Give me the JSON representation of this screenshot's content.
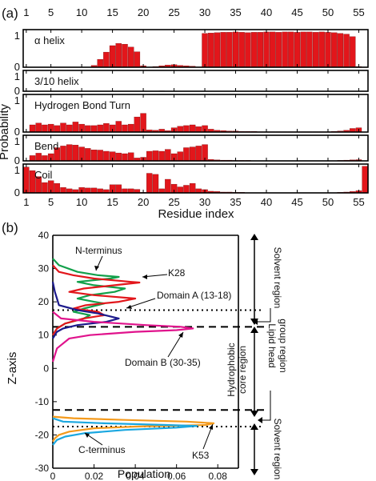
{
  "panel_a": {
    "label": "(a)",
    "ylabel": "Probability",
    "xlabel": "Residue index",
    "top_ticks": [
      "1",
      "5",
      "10",
      "15",
      "20",
      "25",
      "30",
      "35",
      "40",
      "45",
      "50",
      "55"
    ],
    "bottom_ticks": [
      "1",
      "5",
      "10",
      "15",
      "20",
      "25",
      "30",
      "35",
      "40",
      "45",
      "50",
      "55"
    ],
    "y_ticks": [
      "0",
      "1"
    ],
    "bar_color": "#e2161b",
    "subplot_titles": [
      "α helix",
      "3/10 helix",
      "Hydrogen Bond Turn",
      "Bend",
      "Coil"
    ]
  },
  "panel_b": {
    "label": "(b)",
    "ylabel": "Z-axis",
    "xlabel": "Population",
    "x_ticks": [
      "0",
      "0.02",
      "0.04",
      "0.06",
      "0.08"
    ],
    "y_ticks": [
      "40",
      "30",
      "20",
      "10",
      "0",
      "-10",
      "-20",
      "-30"
    ],
    "annotations": {
      "n_term": "N-terminus",
      "k28": "K28",
      "domain_a": "Domain A (13-18)",
      "domain_b": "Domain B (30-35)",
      "c_term": "C-terminus",
      "k53": "K53"
    },
    "regions": {
      "solvent_top": "Solvent region",
      "lipid_head": "Lipid head",
      "group_region": "group region",
      "hydrophobic": "Hydrophobic",
      "core_region": "core region",
      "solvent_bottom": "Solvent region"
    },
    "colors": {
      "green": "#12a04a",
      "red": "#e2161b",
      "navy": "#1c1a8c",
      "magenta": "#e0138c",
      "orange": "#f49a1c",
      "sky": "#1aa7e0"
    }
  },
  "chart_data": [
    {
      "type": "bar",
      "title": "α helix",
      "xlabel": "Residue index",
      "ylabel": "Probability",
      "x": [
        1,
        2,
        3,
        4,
        5,
        6,
        7,
        8,
        9,
        10,
        11,
        12,
        13,
        14,
        15,
        16,
        17,
        18,
        19,
        20,
        21,
        22,
        23,
        24,
        25,
        26,
        27,
        28,
        29,
        30,
        31,
        32,
        33,
        34,
        35,
        36,
        37,
        38,
        39,
        40,
        41,
        42,
        43,
        44,
        45,
        46,
        47,
        48,
        49,
        50,
        51,
        52,
        53,
        54,
        55,
        56
      ],
      "values": [
        0,
        0,
        0,
        0,
        0,
        0,
        0,
        0,
        0,
        0,
        0,
        0.05,
        0.22,
        0.42,
        0.6,
        0.66,
        0.64,
        0.56,
        0.43,
        0.04,
        0,
        0.02,
        0.04,
        0.06,
        0.07,
        0.05,
        0.04,
        0.03,
        0.01,
        0.94,
        0.95,
        0.96,
        0.97,
        0.97,
        0.98,
        0.97,
        0.96,
        0.97,
        0.97,
        0.98,
        0.98,
        0.97,
        0.98,
        0.98,
        0.97,
        0.98,
        0.98,
        0.97,
        0.98,
        0.97,
        0.96,
        0.94,
        0.92,
        0.85,
        0.02,
        0
      ],
      "ylim": [
        0,
        1
      ]
    },
    {
      "type": "bar",
      "title": "3/10 helix",
      "xlabel": "Residue index",
      "ylabel": "Probability",
      "x": [
        1,
        2,
        3,
        4,
        5,
        6,
        7,
        8,
        9,
        10,
        11,
        12,
        13,
        14,
        15,
        16,
        17,
        18,
        19,
        20,
        21,
        22,
        23,
        24,
        25,
        26,
        27,
        28,
        29,
        30,
        31,
        32,
        33,
        34,
        35,
        36,
        37,
        38,
        39,
        40,
        41,
        42,
        43,
        44,
        45,
        46,
        47,
        48,
        49,
        50,
        51,
        52,
        53,
        54,
        55,
        56
      ],
      "values": [
        0,
        0,
        0,
        0,
        0,
        0,
        0,
        0,
        0,
        0,
        0,
        0,
        0,
        0,
        0,
        0,
        0,
        0,
        0,
        0,
        0,
        0.01,
        0.02,
        0.01,
        0,
        0,
        0,
        0,
        0,
        0,
        0,
        0,
        0,
        0,
        0,
        0,
        0,
        0,
        0,
        0,
        0,
        0,
        0,
        0,
        0,
        0,
        0,
        0,
        0,
        0,
        0,
        0,
        0,
        0,
        0,
        0
      ],
      "ylim": [
        0,
        1
      ]
    },
    {
      "type": "bar",
      "title": "Hydrogen Bond Turn",
      "xlabel": "Residue index",
      "ylabel": "Probability",
      "x": [
        1,
        2,
        3,
        4,
        5,
        6,
        7,
        8,
        9,
        10,
        11,
        12,
        13,
        14,
        15,
        16,
        17,
        18,
        19,
        20,
        21,
        22,
        23,
        24,
        25,
        26,
        27,
        28,
        29,
        30,
        31,
        32,
        33,
        34,
        35,
        36,
        37,
        38,
        39,
        40,
        41,
        42,
        43,
        44,
        45,
        46,
        47,
        48,
        49,
        50,
        51,
        52,
        53,
        54,
        55,
        56
      ],
      "values": [
        0,
        0.2,
        0.25,
        0.2,
        0.22,
        0.18,
        0.25,
        0.2,
        0.28,
        0.22,
        0.18,
        0.18,
        0.2,
        0.24,
        0.2,
        0.3,
        0.2,
        0.22,
        0.42,
        0.52,
        0.06,
        0.05,
        0.08,
        0.04,
        0.12,
        0.16,
        0.18,
        0.2,
        0.15,
        0.18,
        0.08,
        0.05,
        0.04,
        0.03,
        0.03,
        0.02,
        0.02,
        0.02,
        0.01,
        0.01,
        0.01,
        0.01,
        0.01,
        0.01,
        0.01,
        0.01,
        0.01,
        0.01,
        0.01,
        0.01,
        0.02,
        0.03,
        0.05,
        0.1,
        0.12,
        0
      ],
      "ylim": [
        0,
        1
      ]
    },
    {
      "type": "bar",
      "title": "Bend",
      "xlabel": "Residue index",
      "ylabel": "Probability",
      "x": [
        1,
        2,
        3,
        4,
        5,
        6,
        7,
        8,
        9,
        10,
        11,
        12,
        13,
        14,
        15,
        16,
        17,
        18,
        19,
        20,
        21,
        22,
        23,
        24,
        25,
        26,
        27,
        28,
        29,
        30,
        31,
        32,
        33,
        34,
        35,
        36,
        37,
        38,
        39,
        40,
        41,
        42,
        43,
        44,
        45,
        46,
        47,
        48,
        49,
        50,
        51,
        52,
        53,
        54,
        55,
        56
      ],
      "values": [
        0,
        0.22,
        0.32,
        0.22,
        0.3,
        0.55,
        0.62,
        0.68,
        0.66,
        0.58,
        0.52,
        0.46,
        0.45,
        0.4,
        0.38,
        0.33,
        0.3,
        0.34,
        0.12,
        0.15,
        0.4,
        0.42,
        0.4,
        0.48,
        0.3,
        0.38,
        0.55,
        0.58,
        0.62,
        0.68,
        0.06,
        0.04,
        0.03,
        0.03,
        0.02,
        0.02,
        0.02,
        0.01,
        0.01,
        0.01,
        0.01,
        0.01,
        0.01,
        0.01,
        0.01,
        0.01,
        0.01,
        0.01,
        0.01,
        0.01,
        0.01,
        0.02,
        0.03,
        0.04,
        0.05,
        0
      ],
      "ylim": [
        0,
        1
      ]
    },
    {
      "type": "bar",
      "title": "Coil",
      "xlabel": "Residue index",
      "ylabel": "Probability",
      "x": [
        1,
        2,
        3,
        4,
        5,
        6,
        7,
        8,
        9,
        10,
        11,
        12,
        13,
        14,
        15,
        16,
        17,
        18,
        19,
        20,
        21,
        22,
        23,
        24,
        25,
        26,
        27,
        28,
        29,
        30,
        31,
        32,
        33,
        34,
        35,
        36,
        37,
        38,
        39,
        40,
        41,
        42,
        43,
        44,
        45,
        46,
        47,
        48,
        49,
        50,
        51,
        52,
        53,
        54,
        55,
        56
      ],
      "values": [
        0.95,
        0.82,
        0.6,
        0.38,
        0.45,
        0.35,
        0.2,
        0.15,
        0.12,
        0.2,
        0.18,
        0.18,
        0.15,
        0.12,
        0.3,
        0.3,
        0.15,
        0.15,
        0.13,
        0.02,
        0.72,
        0.68,
        0.15,
        0.5,
        0.32,
        0.22,
        0.28,
        0.35,
        0.15,
        0.12,
        0.06,
        0.05,
        0.03,
        0.03,
        0.02,
        0.02,
        0.01,
        0.01,
        0.01,
        0.01,
        0.01,
        0.01,
        0.01,
        0.01,
        0.01,
        0.01,
        0.01,
        0.01,
        0.01,
        0.01,
        0.01,
        0.02,
        0.03,
        0.05,
        0.08,
        0.98
      ],
      "ylim": [
        0,
        1
      ]
    },
    {
      "type": "line",
      "xlabel": "Population",
      "ylabel": "Z-axis",
      "xlim": [
        0,
        0.09
      ],
      "ylim": [
        -30,
        40
      ],
      "grid": false,
      "series": [
        {
          "name": "N-terminus",
          "color": "#12a04a",
          "points": [
            [
              0,
              33
            ],
            [
              0.003,
              31
            ],
            [
              0.012,
              29
            ],
            [
              0.022,
              28
            ],
            [
              0.032,
              27.5
            ],
            [
              0.028,
              27
            ],
            [
              0.012,
              26
            ],
            [
              0.02,
              25
            ],
            [
              0.035,
              24
            ],
            [
              0.03,
              23
            ],
            [
              0.018,
              22
            ],
            [
              0.012,
              21
            ],
            [
              0.02,
              20
            ],
            [
              0.025,
              19.5
            ],
            [
              0.015,
              18
            ],
            [
              0.01,
              17
            ],
            [
              0.018,
              16
            ],
            [
              0.015,
              15
            ],
            [
              0.006,
              13.5
            ],
            [
              0.002,
              12
            ],
            [
              0,
              10
            ]
          ]
        },
        {
          "name": "K28",
          "color": "#e2161b",
          "points": [
            [
              0,
              31
            ],
            [
              0.003,
              29
            ],
            [
              0.01,
              28
            ],
            [
              0.02,
              27
            ],
            [
              0.038,
              26
            ],
            [
              0.042,
              25.8
            ],
            [
              0.03,
              25
            ],
            [
              0.015,
              24
            ],
            [
              0.008,
              23
            ],
            [
              0.02,
              22
            ],
            [
              0.04,
              21
            ],
            [
              0.032,
              20
            ],
            [
              0.016,
              19
            ],
            [
              0.01,
              18
            ],
            [
              0.022,
              17
            ],
            [
              0.025,
              16
            ],
            [
              0.015,
              15
            ],
            [
              0.006,
              13.5
            ],
            [
              0.002,
              12
            ],
            [
              0,
              10
            ]
          ]
        },
        {
          "name": "Domain A (13-18)",
          "color": "#1c1a8c",
          "points": [
            [
              0,
              26
            ],
            [
              0.001,
              23
            ],
            [
              0.002,
              21
            ],
            [
              0.003,
              19
            ],
            [
              0.012,
              17.5
            ],
            [
              0.022,
              16.5
            ],
            [
              0.032,
              15
            ],
            [
              0.026,
              14
            ],
            [
              0.012,
              13
            ],
            [
              0.005,
              12
            ],
            [
              0.002,
              11
            ],
            [
              0,
              9
            ]
          ]
        },
        {
          "name": "Domain B (30-35)",
          "color": "#e0138c",
          "points": [
            [
              0,
              17
            ],
            [
              0.004,
              15
            ],
            [
              0.02,
              14
            ],
            [
              0.045,
              13
            ],
            [
              0.062,
              12.5
            ],
            [
              0.068,
              12
            ],
            [
              0.06,
              11.5
            ],
            [
              0.04,
              11
            ],
            [
              0.018,
              10
            ],
            [
              0.008,
              9
            ],
            [
              0.006,
              8
            ],
            [
              0.004,
              7
            ],
            [
              0.002,
              6
            ],
            [
              0.001,
              4
            ],
            [
              0,
              2
            ]
          ]
        },
        {
          "name": "K53",
          "color": "#f49a1c",
          "points": [
            [
              0,
              -14.5
            ],
            [
              0.01,
              -15
            ],
            [
              0.035,
              -15.5
            ],
            [
              0.065,
              -16
            ],
            [
              0.078,
              -16.5
            ],
            [
              0.074,
              -17
            ],
            [
              0.04,
              -17.5
            ],
            [
              0.02,
              -18
            ],
            [
              0.008,
              -19
            ],
            [
              0.003,
              -20
            ],
            [
              0.001,
              -21
            ],
            [
              0,
              -22
            ]
          ]
        },
        {
          "name": "C-terminus",
          "color": "#1aa7e0",
          "points": [
            [
              0,
              -15
            ],
            [
              0.005,
              -16
            ],
            [
              0.025,
              -16.5
            ],
            [
              0.055,
              -17
            ],
            [
              0.07,
              -17.3
            ],
            [
              0.06,
              -17.8
            ],
            [
              0.035,
              -18.5
            ],
            [
              0.015,
              -19.5
            ],
            [
              0.006,
              -20.5
            ],
            [
              0.002,
              -21.5
            ],
            [
              0,
              -23
            ]
          ]
        }
      ],
      "reference_lines": [
        {
          "y": 17.5,
          "style": "dotted"
        },
        {
          "y": 12.5,
          "style": "dashed"
        },
        {
          "y": -12.5,
          "style": "dashed"
        },
        {
          "y": -17.5,
          "style": "dotted"
        }
      ]
    }
  ]
}
